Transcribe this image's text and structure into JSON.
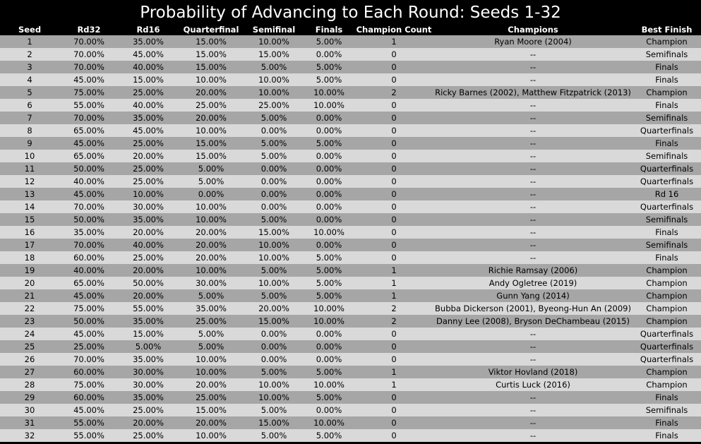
{
  "chart_data": {
    "type": "table",
    "title": "Probability of Advancing to Each Round: Seeds 1-32",
    "columns": [
      "Seed",
      "Rd32",
      "Rd16",
      "Quarterfinal",
      "Semifinal",
      "Finals",
      "Champion Count",
      "Champions",
      "Best Finish"
    ],
    "rows": [
      [
        "1",
        "70.00%",
        "35.00%",
        "15.00%",
        "10.00%",
        "5.00%",
        "1",
        "Ryan Moore (2004)",
        "Champion"
      ],
      [
        "2",
        "70.00%",
        "45.00%",
        "15.00%",
        "15.00%",
        "0.00%",
        "0",
        "--",
        "Semifinals"
      ],
      [
        "3",
        "70.00%",
        "40.00%",
        "15.00%",
        "5.00%",
        "5.00%",
        "0",
        "--",
        "Finals"
      ],
      [
        "4",
        "45.00%",
        "15.00%",
        "10.00%",
        "10.00%",
        "5.00%",
        "0",
        "--",
        "Finals"
      ],
      [
        "5",
        "75.00%",
        "25.00%",
        "20.00%",
        "10.00%",
        "10.00%",
        "2",
        "Ricky Barnes (2002), Matthew Fitzpatrick (2013)",
        "Champion"
      ],
      [
        "6",
        "55.00%",
        "40.00%",
        "25.00%",
        "25.00%",
        "10.00%",
        "0",
        "--",
        "Finals"
      ],
      [
        "7",
        "70.00%",
        "35.00%",
        "20.00%",
        "5.00%",
        "0.00%",
        "0",
        "--",
        "Semifinals"
      ],
      [
        "8",
        "65.00%",
        "45.00%",
        "10.00%",
        "0.00%",
        "0.00%",
        "0",
        "--",
        "Quarterfinals"
      ],
      [
        "9",
        "45.00%",
        "25.00%",
        "15.00%",
        "5.00%",
        "5.00%",
        "0",
        "--",
        "Finals"
      ],
      [
        "10",
        "65.00%",
        "20.00%",
        "15.00%",
        "5.00%",
        "0.00%",
        "0",
        "--",
        "Semifinals"
      ],
      [
        "11",
        "50.00%",
        "25.00%",
        "5.00%",
        "0.00%",
        "0.00%",
        "0",
        "--",
        "Quarterfinals"
      ],
      [
        "12",
        "40.00%",
        "25.00%",
        "5.00%",
        "0.00%",
        "0.00%",
        "0",
        "--",
        "Quarterfinals"
      ],
      [
        "13",
        "45.00%",
        "10.00%",
        "0.00%",
        "0.00%",
        "0.00%",
        "0",
        "--",
        "Rd 16"
      ],
      [
        "14",
        "70.00%",
        "30.00%",
        "10.00%",
        "0.00%",
        "0.00%",
        "0",
        "--",
        "Quarterfinals"
      ],
      [
        "15",
        "50.00%",
        "35.00%",
        "10.00%",
        "5.00%",
        "0.00%",
        "0",
        "--",
        "Semifinals"
      ],
      [
        "16",
        "35.00%",
        "20.00%",
        "20.00%",
        "15.00%",
        "10.00%",
        "0",
        "--",
        "Finals"
      ],
      [
        "17",
        "70.00%",
        "40.00%",
        "20.00%",
        "10.00%",
        "0.00%",
        "0",
        "--",
        "Semifinals"
      ],
      [
        "18",
        "60.00%",
        "25.00%",
        "20.00%",
        "10.00%",
        "5.00%",
        "0",
        "--",
        "Finals"
      ],
      [
        "19",
        "40.00%",
        "20.00%",
        "10.00%",
        "5.00%",
        "5.00%",
        "1",
        "Richie Ramsay (2006)",
        "Champion"
      ],
      [
        "20",
        "65.00%",
        "50.00%",
        "30.00%",
        "10.00%",
        "5.00%",
        "1",
        "Andy Ogletree (2019)",
        "Champion"
      ],
      [
        "21",
        "45.00%",
        "20.00%",
        "5.00%",
        "5.00%",
        "5.00%",
        "1",
        "Gunn Yang (2014)",
        "Champion"
      ],
      [
        "22",
        "75.00%",
        "55.00%",
        "35.00%",
        "20.00%",
        "10.00%",
        "2",
        "Bubba Dickerson (2001), Byeong-Hun An (2009)",
        "Champion"
      ],
      [
        "23",
        "50.00%",
        "35.00%",
        "25.00%",
        "15.00%",
        "10.00%",
        "2",
        "Danny Lee (2008), Bryson DeChambeau (2015)",
        "Champion"
      ],
      [
        "24",
        "45.00%",
        "15.00%",
        "5.00%",
        "0.00%",
        "0.00%",
        "0",
        "--",
        "Quarterfinals"
      ],
      [
        "25",
        "25.00%",
        "5.00%",
        "5.00%",
        "0.00%",
        "0.00%",
        "0",
        "--",
        "Quarterfinals"
      ],
      [
        "26",
        "70.00%",
        "35.00%",
        "10.00%",
        "0.00%",
        "0.00%",
        "0",
        "--",
        "Quarterfinals"
      ],
      [
        "27",
        "60.00%",
        "30.00%",
        "10.00%",
        "5.00%",
        "5.00%",
        "1",
        "Viktor Hovland (2018)",
        "Champion"
      ],
      [
        "28",
        "75.00%",
        "30.00%",
        "20.00%",
        "10.00%",
        "10.00%",
        "1",
        "Curtis Luck (2016)",
        "Champion"
      ],
      [
        "29",
        "60.00%",
        "35.00%",
        "25.00%",
        "10.00%",
        "5.00%",
        "0",
        "--",
        "Finals"
      ],
      [
        "30",
        "45.00%",
        "25.00%",
        "15.00%",
        "5.00%",
        "0.00%",
        "0",
        "--",
        "Semifinals"
      ],
      [
        "31",
        "55.00%",
        "20.00%",
        "20.00%",
        "15.00%",
        "10.00%",
        "0",
        "--",
        "Finals"
      ],
      [
        "32",
        "55.00%",
        "25.00%",
        "10.00%",
        "5.00%",
        "5.00%",
        "0",
        "--",
        "Finals"
      ]
    ]
  },
  "colors": {
    "background": "#000000",
    "header_text": "#ffffff",
    "row_odd": "#a6a6a6",
    "row_even": "#d9d9d9",
    "cell_text": "#000000"
  }
}
